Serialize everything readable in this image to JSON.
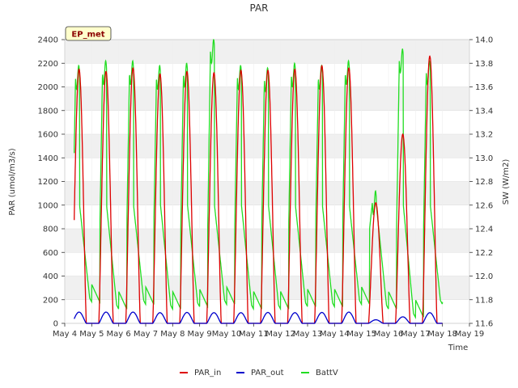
{
  "chart_data": {
    "type": "line",
    "title": "PAR",
    "site_label": "EP_met",
    "xlabel": "Time",
    "ylabel": "PAR (umol/m3/s)",
    "y2label": "SW (W/m2)",
    "xlim": [
      4,
      19
    ],
    "ylim": [
      0,
      2400
    ],
    "y2lim": [
      11.6,
      14.0
    ],
    "x_ticks": [
      4,
      5,
      6,
      7,
      8,
      9,
      10,
      11,
      12,
      13,
      14,
      15,
      16,
      17,
      18,
      19
    ],
    "x_tick_labels": [
      "May 4",
      "May 5",
      "May 6",
      "May 7",
      "May 8",
      "May 9",
      "May 10",
      "May 11",
      "May 12",
      "May 13",
      "May 14",
      "May 15",
      "May 16",
      "May 17",
      "May 18",
      "May 19"
    ],
    "y_ticks": [
      0,
      200,
      400,
      600,
      800,
      1000,
      1200,
      1400,
      1600,
      1800,
      2000,
      2200,
      2400
    ],
    "y2_ticks": [
      11.6,
      11.8,
      12.0,
      12.2,
      12.4,
      12.6,
      12.8,
      13.0,
      13.2,
      13.4,
      13.6,
      13.8,
      14.0
    ],
    "grid": true,
    "background_bands": true,
    "legend_position": "bottom-center",
    "series": [
      {
        "name": "PAR_in",
        "color": "#dd0000",
        "axis": "left",
        "day_peaks": [
          2150,
          2130,
          2160,
          2110,
          2130,
          2120,
          2140,
          2140,
          2150,
          2180,
          2160,
          1020,
          1600,
          2260
        ]
      },
      {
        "name": "PAR_out",
        "color": "#0000cc",
        "axis": "left",
        "day_peaks": [
          95,
          95,
          95,
          90,
          92,
          90,
          90,
          92,
          90,
          92,
          95,
          30,
          55,
          90
        ]
      },
      {
        "name": "BattV",
        "color": "#22dd22",
        "axis": "right",
        "day_peaks": [
          13.68,
          13.72,
          13.72,
          13.68,
          13.7,
          13.9,
          13.68,
          13.66,
          13.7,
          13.68,
          13.72,
          12.62,
          13.82,
          13.72
        ],
        "night_min": [
          11.78,
          11.72,
          11.76,
          11.72,
          11.74,
          11.76,
          11.72,
          11.72,
          11.74,
          11.74,
          11.76,
          11.72,
          11.65,
          11.76
        ]
      }
    ]
  }
}
